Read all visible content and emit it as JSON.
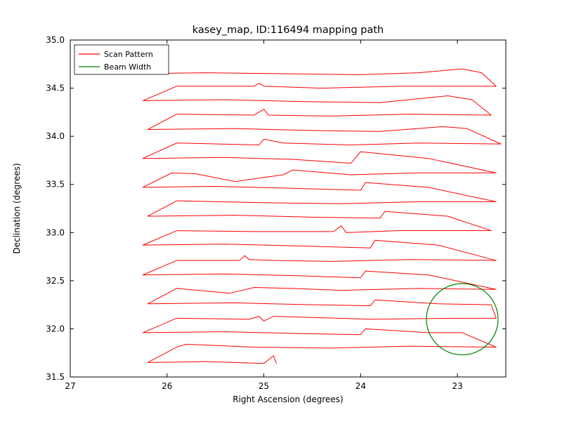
{
  "chart_data": {
    "type": "line",
    "title": "kasey_map, ID:116494 mapping path",
    "xlabel": "Right Ascension (degrees)",
    "ylabel": "Declination (degrees)",
    "xlim": [
      27.0,
      22.5
    ],
    "x_inverted": true,
    "ylim": [
      31.5,
      35.0
    ],
    "grid": false,
    "xticks": [
      27,
      26,
      25,
      24,
      23
    ],
    "xtick_labels": [
      "27",
      "26",
      "25",
      "24",
      "23"
    ],
    "yticks": [
      31.5,
      32.0,
      32.5,
      33.0,
      33.5,
      34.0,
      34.5,
      35.0
    ],
    "ytick_labels": [
      "31.5",
      "32.0",
      "32.5",
      "33.0",
      "33.5",
      "34.0",
      "34.5",
      "35.0"
    ],
    "legend": {
      "position": "upper-left",
      "items": [
        {
          "label": "Scan Pattern",
          "color": "#ff0000"
        },
        {
          "label": "Beam Width",
          "color": "#008000"
        }
      ]
    },
    "series": [
      {
        "name": "Scan Pattern",
        "color": "#ff0000",
        "points": [
          [
            26.3,
            34.65
          ],
          [
            25.6,
            34.66
          ],
          [
            24.8,
            34.65
          ],
          [
            24.0,
            34.64
          ],
          [
            23.4,
            34.66
          ],
          [
            22.95,
            34.7
          ],
          [
            22.75,
            34.66
          ],
          [
            22.6,
            34.52
          ],
          [
            23.6,
            34.52
          ],
          [
            24.4,
            34.5
          ],
          [
            25.0,
            34.52
          ],
          [
            25.05,
            34.55
          ],
          [
            25.1,
            34.52
          ],
          [
            25.9,
            34.52
          ],
          [
            26.25,
            34.37
          ],
          [
            25.4,
            34.38
          ],
          [
            24.6,
            34.36
          ],
          [
            23.8,
            34.35
          ],
          [
            23.1,
            34.42
          ],
          [
            22.85,
            34.38
          ],
          [
            22.65,
            34.22
          ],
          [
            23.5,
            34.23
          ],
          [
            24.3,
            34.21
          ],
          [
            24.95,
            34.22
          ],
          [
            25.0,
            34.28
          ],
          [
            25.1,
            34.22
          ],
          [
            25.9,
            34.23
          ],
          [
            26.2,
            34.07
          ],
          [
            25.3,
            34.08
          ],
          [
            24.5,
            34.06
          ],
          [
            23.8,
            34.05
          ],
          [
            23.15,
            34.1
          ],
          [
            22.9,
            34.08
          ],
          [
            22.55,
            33.92
          ],
          [
            23.4,
            33.93
          ],
          [
            24.1,
            33.91
          ],
          [
            24.8,
            33.93
          ],
          [
            25.0,
            33.97
          ],
          [
            25.05,
            33.91
          ],
          [
            25.9,
            33.93
          ],
          [
            26.25,
            33.77
          ],
          [
            25.4,
            33.78
          ],
          [
            24.7,
            33.76
          ],
          [
            24.1,
            33.72
          ],
          [
            24.0,
            33.84
          ],
          [
            23.3,
            33.77
          ],
          [
            22.6,
            33.62
          ],
          [
            23.4,
            33.62
          ],
          [
            24.1,
            33.6
          ],
          [
            24.7,
            33.65
          ],
          [
            24.8,
            33.6
          ],
          [
            25.3,
            33.53
          ],
          [
            25.7,
            33.61
          ],
          [
            25.95,
            33.62
          ],
          [
            26.25,
            33.47
          ],
          [
            25.5,
            33.48
          ],
          [
            24.7,
            33.46
          ],
          [
            24.0,
            33.44
          ],
          [
            23.95,
            33.52
          ],
          [
            23.3,
            33.47
          ],
          [
            22.6,
            33.32
          ],
          [
            23.4,
            33.32
          ],
          [
            24.2,
            33.3
          ],
          [
            25.0,
            33.31
          ],
          [
            25.9,
            33.33
          ],
          [
            26.2,
            33.17
          ],
          [
            25.3,
            33.18
          ],
          [
            24.5,
            33.16
          ],
          [
            23.8,
            33.15
          ],
          [
            23.75,
            33.22
          ],
          [
            23.1,
            33.17
          ],
          [
            22.65,
            33.02
          ],
          [
            23.6,
            33.02
          ],
          [
            24.15,
            33.0
          ],
          [
            24.2,
            33.07
          ],
          [
            24.28,
            33.01
          ],
          [
            25.1,
            33.01
          ],
          [
            25.9,
            33.02
          ],
          [
            26.25,
            32.87
          ],
          [
            25.4,
            32.88
          ],
          [
            24.6,
            32.86
          ],
          [
            23.9,
            32.84
          ],
          [
            23.85,
            32.92
          ],
          [
            23.2,
            32.87
          ],
          [
            22.6,
            32.71
          ],
          [
            23.5,
            32.72
          ],
          [
            24.3,
            32.7
          ],
          [
            24.9,
            32.71
          ],
          [
            25.15,
            32.72
          ],
          [
            25.2,
            32.76
          ],
          [
            25.25,
            32.71
          ],
          [
            25.9,
            32.71
          ],
          [
            26.25,
            32.56
          ],
          [
            25.4,
            32.57
          ],
          [
            24.6,
            32.55
          ],
          [
            24.0,
            32.53
          ],
          [
            23.95,
            32.6
          ],
          [
            23.3,
            32.56
          ],
          [
            22.6,
            32.41
          ],
          [
            23.4,
            32.42
          ],
          [
            24.2,
            32.4
          ],
          [
            24.7,
            32.42
          ],
          [
            25.1,
            32.43
          ],
          [
            25.35,
            32.37
          ],
          [
            25.9,
            32.42
          ],
          [
            26.2,
            32.26
          ],
          [
            25.3,
            32.27
          ],
          [
            24.5,
            32.25
          ],
          [
            23.9,
            32.24
          ],
          [
            23.85,
            32.3
          ],
          [
            23.2,
            32.26
          ],
          [
            22.65,
            32.25
          ],
          [
            22.6,
            32.11
          ],
          [
            23.0,
            32.11
          ],
          [
            23.9,
            32.1
          ],
          [
            24.9,
            32.13
          ],
          [
            25.0,
            32.08
          ],
          [
            25.05,
            32.13
          ],
          [
            25.15,
            32.1
          ],
          [
            25.9,
            32.11
          ],
          [
            26.25,
            31.96
          ],
          [
            25.4,
            31.97
          ],
          [
            24.6,
            31.95
          ],
          [
            24.0,
            31.94
          ],
          [
            23.95,
            32.0
          ],
          [
            23.3,
            31.96
          ],
          [
            22.95,
            31.96
          ],
          [
            22.6,
            31.81
          ],
          [
            23.5,
            31.82
          ],
          [
            24.3,
            31.8
          ],
          [
            25.1,
            31.81
          ],
          [
            25.8,
            31.84
          ],
          [
            25.9,
            31.81
          ],
          [
            26.2,
            31.65
          ],
          [
            25.6,
            31.66
          ],
          [
            25.3,
            31.65
          ],
          [
            25.0,
            31.64
          ],
          [
            24.9,
            31.72
          ],
          [
            24.87,
            31.64
          ]
        ]
      }
    ],
    "beam_circle": {
      "name": "Beam Width",
      "color": "#008000",
      "center": [
        22.95,
        32.1
      ],
      "radius_deg": 0.37
    }
  }
}
